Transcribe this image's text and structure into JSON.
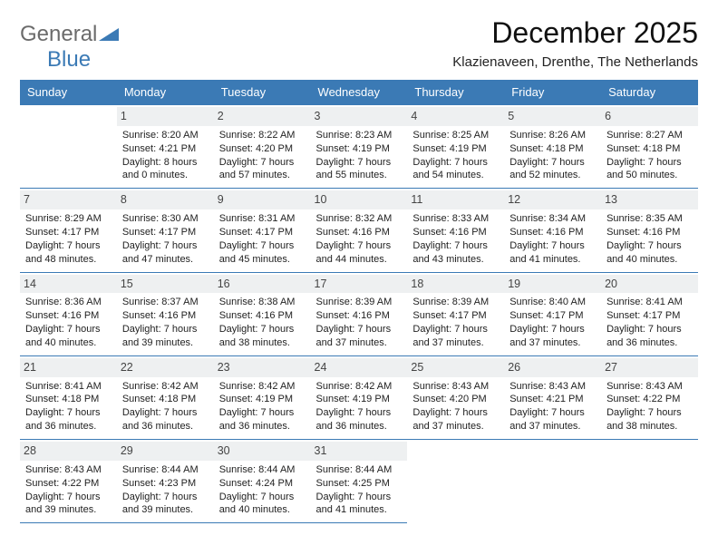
{
  "logo": {
    "text_general": "General",
    "text_blue": "Blue"
  },
  "title": "December 2025",
  "location": "Klazienaveen, Drenthe, The Netherlands",
  "colors": {
    "header_bg": "#3b7ab5",
    "header_text": "#ffffff",
    "daynum_bg": "#eef0f1",
    "border": "#3b7ab5",
    "logo_gray": "#6b6b6b",
    "logo_blue": "#3b7ab5"
  },
  "weekdays": [
    "Sunday",
    "Monday",
    "Tuesday",
    "Wednesday",
    "Thursday",
    "Friday",
    "Saturday"
  ],
  "weeks": [
    [
      null,
      {
        "d": "1",
        "sunrise": "8:20 AM",
        "sunset": "4:21 PM",
        "daylight": "8 hours and 0 minutes."
      },
      {
        "d": "2",
        "sunrise": "8:22 AM",
        "sunset": "4:20 PM",
        "daylight": "7 hours and 57 minutes."
      },
      {
        "d": "3",
        "sunrise": "8:23 AM",
        "sunset": "4:19 PM",
        "daylight": "7 hours and 55 minutes."
      },
      {
        "d": "4",
        "sunrise": "8:25 AM",
        "sunset": "4:19 PM",
        "daylight": "7 hours and 54 minutes."
      },
      {
        "d": "5",
        "sunrise": "8:26 AM",
        "sunset": "4:18 PM",
        "daylight": "7 hours and 52 minutes."
      },
      {
        "d": "6",
        "sunrise": "8:27 AM",
        "sunset": "4:18 PM",
        "daylight": "7 hours and 50 minutes."
      }
    ],
    [
      {
        "d": "7",
        "sunrise": "8:29 AM",
        "sunset": "4:17 PM",
        "daylight": "7 hours and 48 minutes."
      },
      {
        "d": "8",
        "sunrise": "8:30 AM",
        "sunset": "4:17 PM",
        "daylight": "7 hours and 47 minutes."
      },
      {
        "d": "9",
        "sunrise": "8:31 AM",
        "sunset": "4:17 PM",
        "daylight": "7 hours and 45 minutes."
      },
      {
        "d": "10",
        "sunrise": "8:32 AM",
        "sunset": "4:16 PM",
        "daylight": "7 hours and 44 minutes."
      },
      {
        "d": "11",
        "sunrise": "8:33 AM",
        "sunset": "4:16 PM",
        "daylight": "7 hours and 43 minutes."
      },
      {
        "d": "12",
        "sunrise": "8:34 AM",
        "sunset": "4:16 PM",
        "daylight": "7 hours and 41 minutes."
      },
      {
        "d": "13",
        "sunrise": "8:35 AM",
        "sunset": "4:16 PM",
        "daylight": "7 hours and 40 minutes."
      }
    ],
    [
      {
        "d": "14",
        "sunrise": "8:36 AM",
        "sunset": "4:16 PM",
        "daylight": "7 hours and 40 minutes."
      },
      {
        "d": "15",
        "sunrise": "8:37 AM",
        "sunset": "4:16 PM",
        "daylight": "7 hours and 39 minutes."
      },
      {
        "d": "16",
        "sunrise": "8:38 AM",
        "sunset": "4:16 PM",
        "daylight": "7 hours and 38 minutes."
      },
      {
        "d": "17",
        "sunrise": "8:39 AM",
        "sunset": "4:16 PM",
        "daylight": "7 hours and 37 minutes."
      },
      {
        "d": "18",
        "sunrise": "8:39 AM",
        "sunset": "4:17 PM",
        "daylight": "7 hours and 37 minutes."
      },
      {
        "d": "19",
        "sunrise": "8:40 AM",
        "sunset": "4:17 PM",
        "daylight": "7 hours and 37 minutes."
      },
      {
        "d": "20",
        "sunrise": "8:41 AM",
        "sunset": "4:17 PM",
        "daylight": "7 hours and 36 minutes."
      }
    ],
    [
      {
        "d": "21",
        "sunrise": "8:41 AM",
        "sunset": "4:18 PM",
        "daylight": "7 hours and 36 minutes."
      },
      {
        "d": "22",
        "sunrise": "8:42 AM",
        "sunset": "4:18 PM",
        "daylight": "7 hours and 36 minutes."
      },
      {
        "d": "23",
        "sunrise": "8:42 AM",
        "sunset": "4:19 PM",
        "daylight": "7 hours and 36 minutes."
      },
      {
        "d": "24",
        "sunrise": "8:42 AM",
        "sunset": "4:19 PM",
        "daylight": "7 hours and 36 minutes."
      },
      {
        "d": "25",
        "sunrise": "8:43 AM",
        "sunset": "4:20 PM",
        "daylight": "7 hours and 37 minutes."
      },
      {
        "d": "26",
        "sunrise": "8:43 AM",
        "sunset": "4:21 PM",
        "daylight": "7 hours and 37 minutes."
      },
      {
        "d": "27",
        "sunrise": "8:43 AM",
        "sunset": "4:22 PM",
        "daylight": "7 hours and 38 minutes."
      }
    ],
    [
      {
        "d": "28",
        "sunrise": "8:43 AM",
        "sunset": "4:22 PM",
        "daylight": "7 hours and 39 minutes."
      },
      {
        "d": "29",
        "sunrise": "8:44 AM",
        "sunset": "4:23 PM",
        "daylight": "7 hours and 39 minutes."
      },
      {
        "d": "30",
        "sunrise": "8:44 AM",
        "sunset": "4:24 PM",
        "daylight": "7 hours and 40 minutes."
      },
      {
        "d": "31",
        "sunrise": "8:44 AM",
        "sunset": "4:25 PM",
        "daylight": "7 hours and 41 minutes."
      },
      null,
      null,
      null
    ]
  ]
}
